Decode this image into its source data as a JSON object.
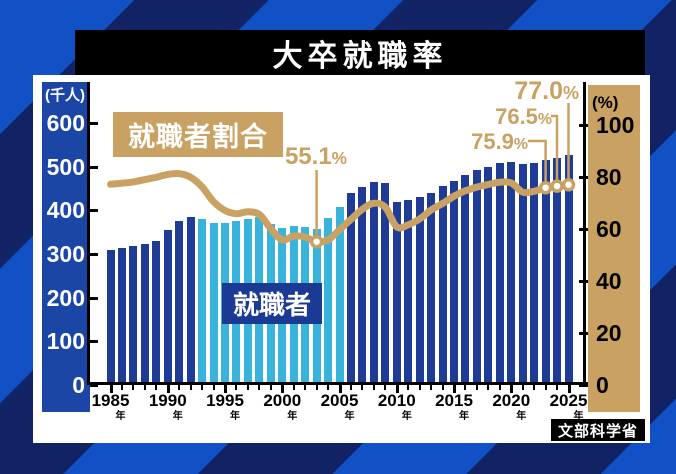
{
  "title": "大卒就職率",
  "source": "文部科学省",
  "legend": {
    "line_label": "就職者割合",
    "bar_label": "就職者"
  },
  "annotations": {
    "trough": {
      "value": "55.1",
      "suffix": "%"
    },
    "latest3": [
      {
        "value": "75.9",
        "suffix": "%"
      },
      {
        "value": "76.5",
        "suffix": "%"
      },
      {
        "value": "77.0",
        "suffix": "%"
      }
    ]
  },
  "colors": {
    "background_navy": "#112365",
    "background_stripe_blue": "#1151c5",
    "bar_navy": "#1e3c96",
    "bar_cyan": "#38b4dc",
    "line_tan": "#c9a163",
    "left_axis_blue": "#1c46a6",
    "panel_white": "#ffffff",
    "title_bar_black": "#000000",
    "marker_fill": "#ffffff"
  },
  "chart_data": {
    "type": "bar+line",
    "title": "大卒就職率",
    "grid": false,
    "x_years": [
      1985,
      1986,
      1987,
      1988,
      1989,
      1990,
      1991,
      1992,
      1993,
      1994,
      1995,
      1996,
      1997,
      1998,
      1999,
      2000,
      2001,
      2002,
      2003,
      2004,
      2005,
      2006,
      2007,
      2008,
      2009,
      2010,
      2011,
      2012,
      2013,
      2014,
      2015,
      2016,
      2017,
      2018,
      2019,
      2020,
      2021,
      2022,
      2023,
      2024,
      2025
    ],
    "series": [
      {
        "name": "就職者",
        "type": "bar",
        "axis": "left",
        "unit": "千人",
        "values": [
          310,
          313,
          318,
          322,
          330,
          355,
          376,
          384,
          380,
          371,
          370,
          375,
          381,
          384,
          368,
          359,
          364,
          361,
          357,
          382,
          407,
          439,
          453,
          465,
          462,
          419,
          424,
          430,
          440,
          455,
          468,
          480,
          492,
          500,
          508,
          510,
          505,
          508,
          515,
          520,
          526
        ]
      },
      {
        "name": "就職者割合",
        "type": "line",
        "axis": "right",
        "unit": "%",
        "values": [
          77.2,
          77.6,
          78.1,
          79.0,
          79.9,
          81.0,
          81.3,
          79.9,
          76.2,
          70.5,
          67.1,
          65.9,
          66.6,
          65.6,
          60.1,
          55.8,
          57.3,
          56.9,
          55.1,
          55.8,
          59.7,
          63.7,
          67.6,
          69.9,
          68.4,
          60.8,
          61.6,
          63.9,
          67.3,
          69.8,
          72.6,
          74.7,
          76.1,
          77.1,
          78.0,
          77.7,
          74.2,
          74.5,
          75.9,
          76.5,
          77.0
        ]
      }
    ],
    "left_axis": {
      "unit": "(千人)",
      "ticks": [
        600,
        500,
        400,
        300,
        200,
        100,
        0
      ],
      "range": [
        0,
        600
      ]
    },
    "right_axis": {
      "unit": "(%)",
      "ticks": [
        100,
        80,
        60,
        40,
        20,
        0
      ],
      "range": [
        0,
        100
      ]
    },
    "x_axis": {
      "tick_years": [
        1985,
        1990,
        1995,
        2000,
        2005,
        2010,
        2015,
        2020,
        2025
      ],
      "year_suffix": "年"
    },
    "highlight_bars": {
      "start_year": 1993,
      "end_year": 2005
    },
    "annotated_points": [
      {
        "year": 2003,
        "value": 55.1,
        "label": "55.1%"
      },
      {
        "year": 2023,
        "value": 75.9,
        "label": "75.9%"
      },
      {
        "year": 2024,
        "value": 76.5,
        "label": "76.5%"
      },
      {
        "year": 2025,
        "value": 77.0,
        "label": "77.0%"
      }
    ]
  }
}
